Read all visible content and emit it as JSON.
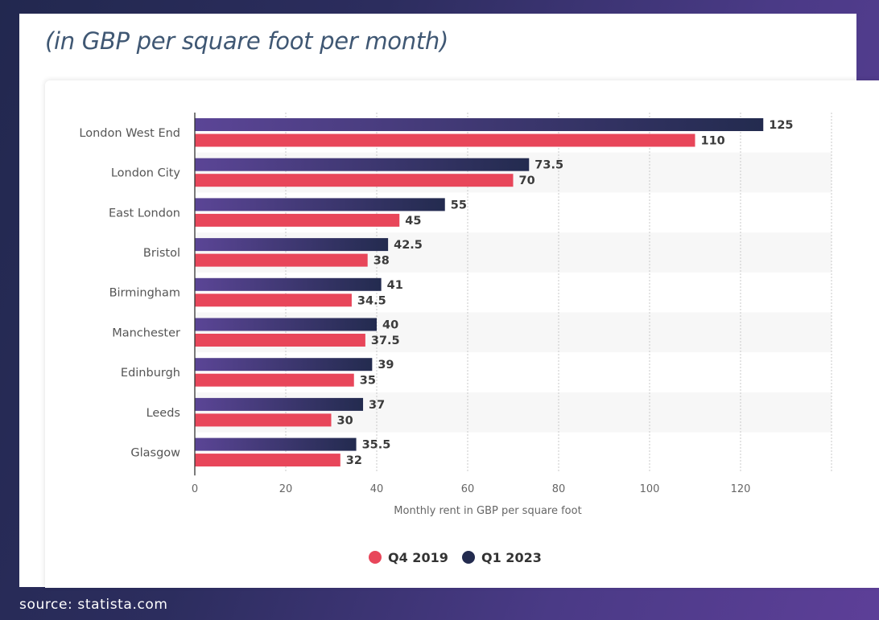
{
  "subtitle": "(in GBP per square foot per month)",
  "source": "source: statista.com",
  "chart_data": {
    "type": "bar",
    "orientation": "horizontal",
    "categories": [
      "London West End",
      "London City",
      "East London",
      "Bristol",
      "Birmingham",
      "Manchester",
      "Edinburgh",
      "Leeds",
      "Glasgow"
    ],
    "series": [
      {
        "name": "Q1 2023",
        "values": [
          125,
          73.5,
          55,
          42.5,
          41,
          40,
          39,
          37,
          35.5
        ],
        "color": "#232b4f",
        "color_start": "#5b4596"
      },
      {
        "name": "Q4 2019",
        "values": [
          110,
          70,
          45,
          38,
          34.5,
          37.5,
          35,
          30,
          32
        ],
        "color": "#e8465a"
      }
    ],
    "value_labels": [
      [
        "125",
        "73.5",
        "55",
        "42.5",
        "41",
        "40",
        "39",
        "37",
        "35.5"
      ],
      [
        "110",
        "70",
        "45",
        "38",
        "34.5",
        "37.5",
        "35",
        "30",
        "32"
      ]
    ],
    "xlabel": "Monthly rent in GBP per square foot",
    "xlim": [
      0,
      140
    ],
    "xticks": [
      0,
      20,
      40,
      60,
      80,
      100,
      120
    ],
    "xtick_labels": [
      "0",
      "20",
      "40",
      "60",
      "80",
      "100",
      "120"
    ],
    "grid": true,
    "legend": {
      "position": "bottom-center",
      "items": [
        {
          "name": "Q4 2019",
          "color": "#e8465a"
        },
        {
          "name": "Q1 2023",
          "color": "#232b4f"
        }
      ]
    }
  }
}
